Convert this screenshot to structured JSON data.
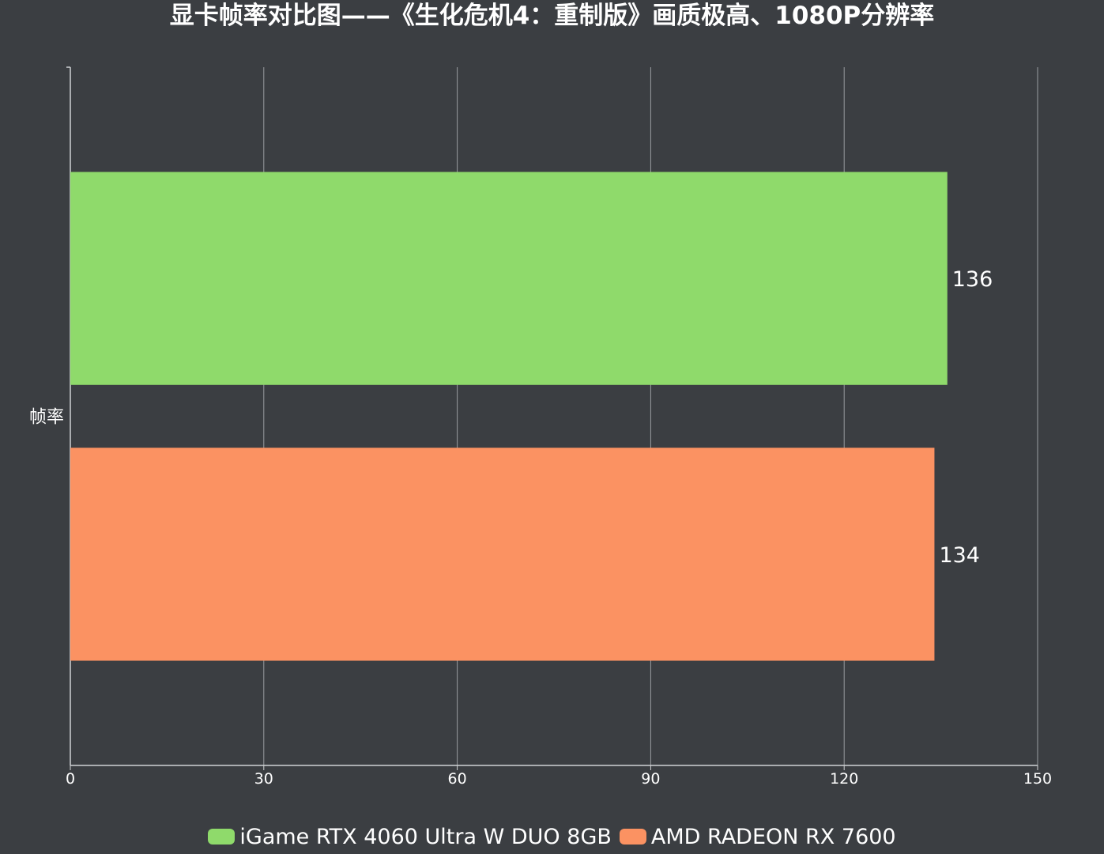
{
  "chart_data": {
    "type": "bar",
    "orientation": "horizontal",
    "title": "显卡帧率对比图——《生化危机4：重制版》画质极高、1080P分辨率",
    "categories": [
      "帧率"
    ],
    "series": [
      {
        "name": "iGame RTX 4060 Ultra W DUO 8GB",
        "values": [
          136
        ],
        "color": "#8fda6b"
      },
      {
        "name": "AMD RADEON RX 7600",
        "values": [
          134
        ],
        "color": "#fb9262"
      }
    ],
    "xlim": [
      0,
      150
    ],
    "xticks": [
      0,
      30,
      60,
      90,
      120,
      150
    ],
    "grid": true,
    "data_labels": true,
    "legend_position": "bottom-center"
  },
  "theme": {
    "background": "#3b3e42",
    "grid_color": "#9a9da1",
    "axis_color": "#d0d2d4",
    "text_color": "#ffffff"
  }
}
